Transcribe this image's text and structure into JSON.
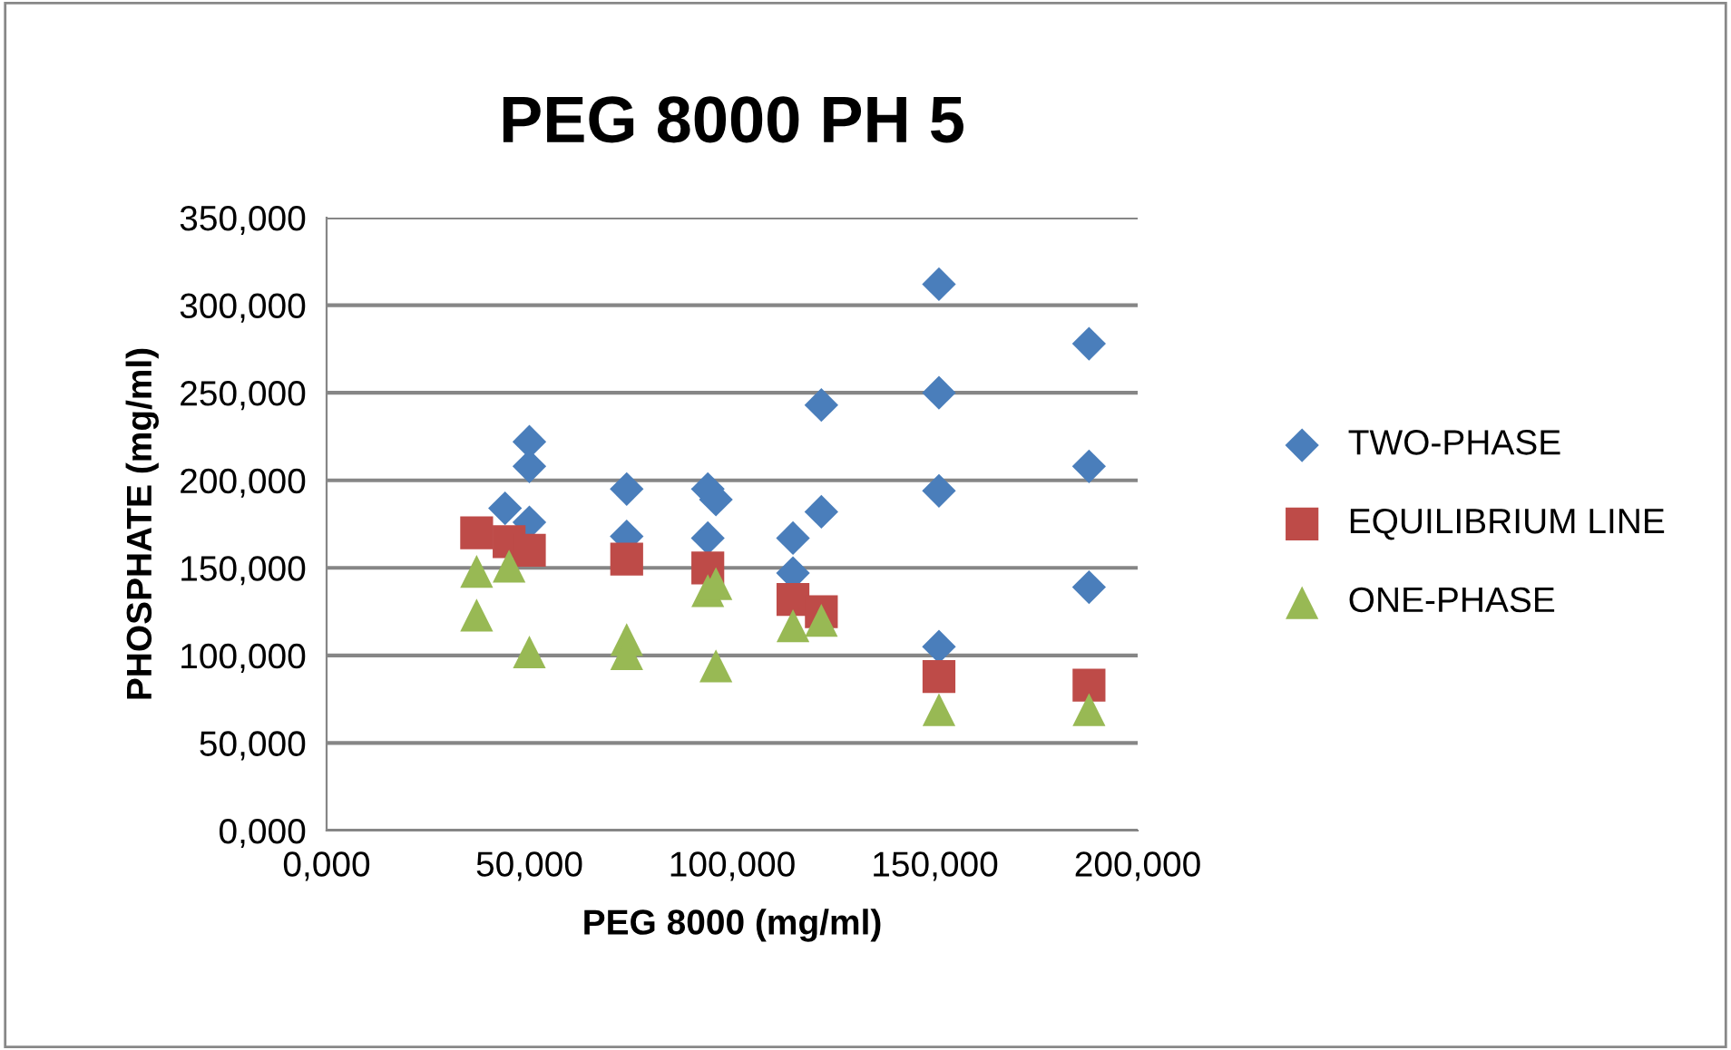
{
  "chart_data": {
    "type": "scatter",
    "title": "PEG 8000 PH 5",
    "xlabel": "PEG 8000 (mg/ml)",
    "ylabel": "PHOSPHATE (mg/ml)",
    "xlim": [
      0,
      200
    ],
    "xticks": [
      {
        "value": 0,
        "label": "0,000"
      },
      {
        "value": 50,
        "label": "50,000"
      },
      {
        "value": 100,
        "label": "100,000"
      },
      {
        "value": 150,
        "label": "150,000"
      },
      {
        "value": 200,
        "label": "200,000"
      }
    ],
    "ylim": [
      0,
      350
    ],
    "yticks": [
      {
        "value": 0,
        "label": "0,000"
      },
      {
        "value": 50,
        "label": "50,000"
      },
      {
        "value": 100,
        "label": "100,000"
      },
      {
        "value": 150,
        "label": "150,000"
      },
      {
        "value": 200,
        "label": "200,000"
      },
      {
        "value": 250,
        "label": "250,000"
      },
      {
        "value": 300,
        "label": "300,000"
      },
      {
        "value": 350,
        "label": "350,000"
      }
    ],
    "grid": "y",
    "legend": "right",
    "series": [
      {
        "name": "TWO-PHASE",
        "color": "#4a7ebb",
        "marker": "diamond",
        "x": [
          44,
          50,
          50,
          50,
          74,
          74,
          94,
          94,
          96,
          115,
          115,
          122,
          122,
          151,
          151,
          151,
          151,
          188,
          188,
          188
        ],
        "values": [
          184,
          222,
          208,
          176,
          195,
          168,
          195,
          167,
          189,
          167,
          147,
          182,
          243,
          312,
          250,
          194,
          105,
          278,
          208,
          139
        ]
      },
      {
        "name": "EQUILIBRIUM LINE",
        "color": "#be4b48",
        "marker": "square",
        "x": [
          37,
          45,
          50,
          74,
          94,
          115,
          122,
          151,
          188
        ],
        "values": [
          170,
          165,
          160,
          155,
          150,
          132,
          125,
          88,
          83
        ]
      },
      {
        "name": "ONE-PHASE",
        "color": "#98b954",
        "marker": "triangle",
        "x": [
          37,
          37,
          45,
          50,
          74,
          74,
          94,
          96,
          96,
          115,
          122,
          151,
          188
        ],
        "values": [
          148,
          123,
          151,
          102,
          109,
          101,
          137,
          141,
          94,
          117,
          120,
          69,
          69
        ]
      }
    ]
  }
}
